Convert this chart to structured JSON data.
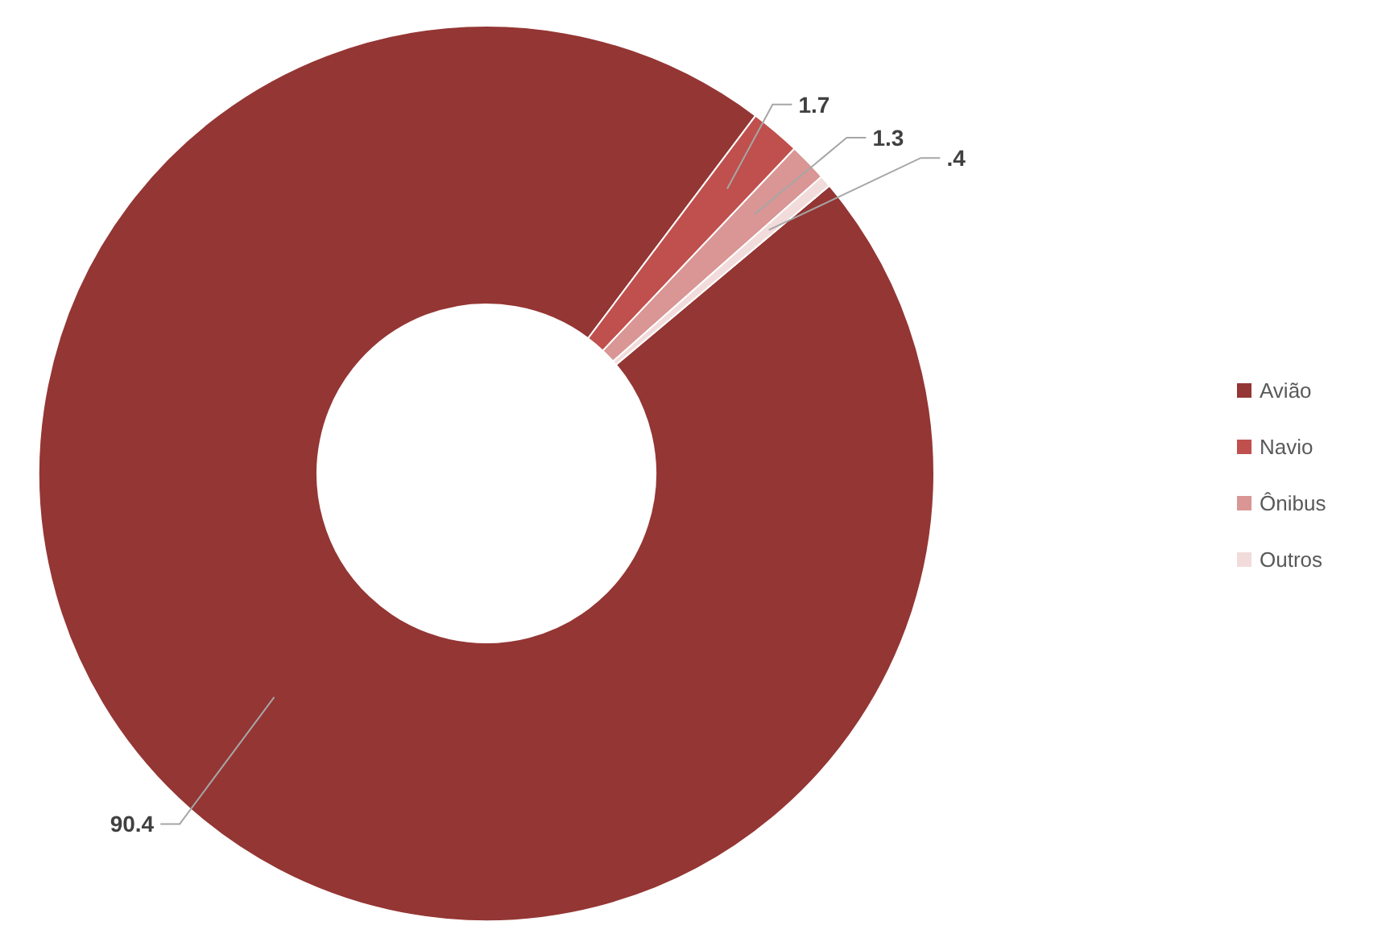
{
  "chart_data": {
    "type": "donut",
    "categories": [
      "Avião",
      "Navio",
      "Ônibus",
      "Outros"
    ],
    "values": [
      90.4,
      1.7,
      1.3,
      0.4
    ],
    "value_labels": [
      "90.4",
      "1.7",
      "1.3",
      ".4"
    ],
    "colors": [
      "#943634",
      "#c0504d",
      "#d99694",
      "#f2dcdb"
    ],
    "legend": "right"
  }
}
